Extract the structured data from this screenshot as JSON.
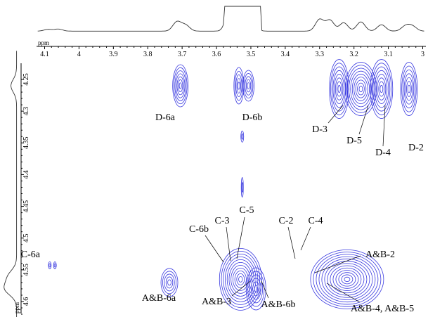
{
  "chart_data": {
    "type": "heatmap",
    "subtype": "2D NMR contour spectrum",
    "title": "",
    "x_axis": {
      "unit_label": "ppm",
      "range": [
        4.12,
        3.0
      ],
      "reversed": true,
      "ticks": [
        4.1,
        4,
        3.9,
        3.8,
        3.7,
        3.6,
        3.5,
        3.4,
        3.3,
        3.2,
        3.1,
        3
      ],
      "tick_labels": [
        "4.1",
        "4",
        "3.9",
        "3.8",
        "3.7",
        "3.6",
        "3.5",
        "3.4",
        "3.3",
        "3.2",
        "3.1",
        "3"
      ]
    },
    "y_axis": {
      "unit_label": "ppm",
      "range": [
        4.205,
        4.625
      ],
      "ticks": [
        4.25,
        4.3,
        4.35,
        4.4,
        4.45,
        4.5,
        4.55,
        4.6
      ],
      "tick_labels": [
        "4.25",
        "4.3",
        "4.35",
        "4.4",
        "4.45",
        "4.5",
        "4.55",
        "4.6"
      ]
    },
    "grid": false,
    "contour_color": "#3a3ae0",
    "projections": {
      "top": "1D 1H spectrum along x",
      "left": "1D spectrum along y"
    },
    "peaks": [
      {
        "label": "D-6a",
        "x": 3.705,
        "y": 4.26
      },
      {
        "label": "D-6b",
        "x": 3.52,
        "y": 4.26
      },
      {
        "label": "D-3",
        "x": 3.255,
        "y": 4.265
      },
      {
        "label": "D-5",
        "x": 3.17,
        "y": 4.265
      },
      {
        "label": "D-4",
        "x": 3.115,
        "y": 4.265
      },
      {
        "label": "D-2",
        "x": 3.04,
        "y": 4.265
      },
      {
        "label": "C-6a",
        "x": 4.09,
        "y": 4.543
      },
      {
        "label": "C-6b",
        "x": 3.565,
        "y": 4.545
      },
      {
        "label": "C-3",
        "x": 3.535,
        "y": 4.55
      },
      {
        "label": "C-5",
        "x": 3.525,
        "y": 4.555
      },
      {
        "label": "C-2",
        "x": 3.31,
        "y": 4.55
      },
      {
        "label": "C-4",
        "x": 3.285,
        "y": 4.55
      },
      {
        "label": "A&B-6a",
        "x": 3.74,
        "y": 4.57
      },
      {
        "label": "A&B-3",
        "x": 3.525,
        "y": 4.57
      },
      {
        "label": "A&B-6b",
        "x": 3.49,
        "y": 4.575
      },
      {
        "label": "A&B-2",
        "x": 3.24,
        "y": 4.56
      },
      {
        "label": "A&B-4, A&B-5",
        "x": 3.16,
        "y": 4.57
      }
    ]
  }
}
